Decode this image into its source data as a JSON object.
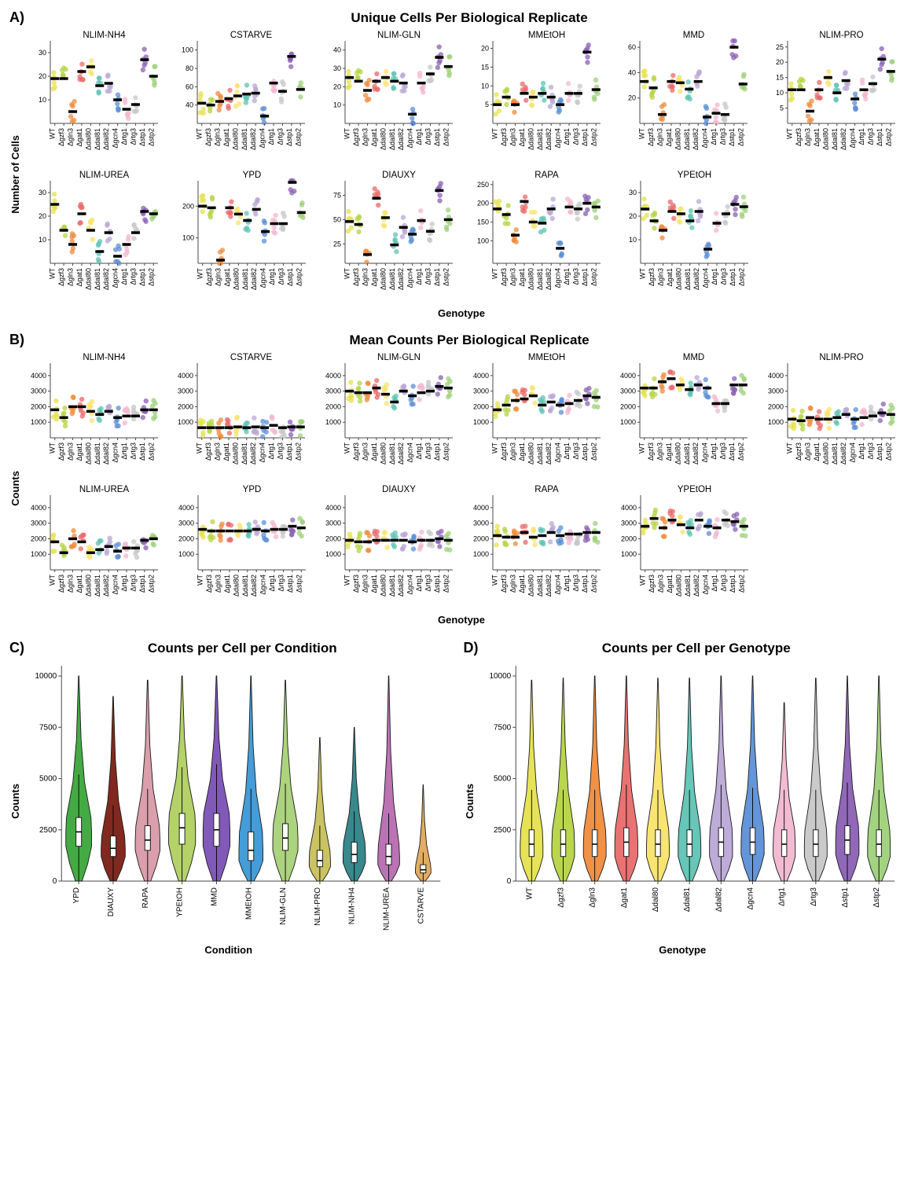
{
  "genotypes": [
    "WT",
    "Δgzf3",
    "Δgln3",
    "Δgat1",
    "Δdal80",
    "Δdal81",
    "Δdal82",
    "Δgcn4",
    "Δrtg1",
    "Δrtg3",
    "Δstp1",
    "Δstp2"
  ],
  "genotype_colors": {
    "WT": "#e6e24d",
    "Δgzf3": "#b6d445",
    "Δgln3": "#f08b3c",
    "Δgat1": "#e96a6a",
    "Δdal80": "#f7e36b",
    "Δdal81": "#5ec3b3",
    "Δdal82": "#b9a7d6",
    "Δgcn4": "#5c8fd6",
    "Δrtg1": "#f2b7d0",
    "Δrtg3": "#c7c7c7",
    "Δstp1": "#8a60b3",
    "Δstp2": "#9ed07a"
  },
  "conditions_order": [
    "YPD",
    "DIAUXY",
    "RAPA",
    "YPEtOH",
    "MMD",
    "MMEtOH",
    "NLIM-GLN",
    "NLIM-PRO",
    "NLIM-NH4",
    "NLIM-UREA",
    "CSTARVE"
  ],
  "condition_colors": {
    "YPD": "#3aa63a",
    "DIAUXY": "#7a1d12",
    "RAPA": "#d89aa7",
    "YPEtOH": "#b0d060",
    "MMD": "#7a50b5",
    "MMEtOH": "#3a98d6",
    "NLIM-GLN": "#a8d176",
    "NLIM-PRO": "#c7c05a",
    "NLIM-NH4": "#2d8286",
    "NLIM-UREA": "#b76bb0",
    "CSTARVE": "#e0a85a"
  },
  "panelA": {
    "letter": "A)",
    "title": "Unique Cells Per Biological Replicate",
    "ylabel": "Number of Cells",
    "xlabel": "Genotype",
    "row1": [
      "NLIM-NH4",
      "CSTARVE",
      "NLIM-GLN",
      "MMEtOH",
      "MMD",
      "NLIM-PRO"
    ],
    "row2": [
      "NLIM-UREA",
      "YPD",
      "DIAUXY",
      "RAPA",
      "YPEtOH"
    ],
    "ylims": {
      "NLIM-NH4": [
        0,
        35
      ],
      "CSTARVE": [
        20,
        110
      ],
      "NLIM-GLN": [
        0,
        45
      ],
      "MMEtOH": [
        0,
        22
      ],
      "MMD": [
        0,
        65
      ],
      "NLIM-PRO": [
        0,
        27
      ],
      "NLIM-UREA": [
        0,
        35
      ],
      "YPD": [
        20,
        280
      ],
      "DIAUXY": [
        5,
        90
      ],
      "RAPA": [
        40,
        260
      ],
      "YPEtOH": [
        0,
        35
      ]
    },
    "yticks": {
      "NLIM-NH4": [
        10,
        20,
        30
      ],
      "CSTARVE": [
        40,
        60,
        80,
        100
      ],
      "NLIM-GLN": [
        10,
        20,
        30,
        40
      ],
      "MMEtOH": [
        5,
        10,
        15,
        20
      ],
      "MMD": [
        20,
        40,
        60
      ],
      "NLIM-PRO": [
        5,
        10,
        15,
        20,
        25
      ],
      "NLIM-UREA": [
        10,
        20,
        30
      ],
      "YPD": [
        100,
        200
      ],
      "DIAUXY": [
        25,
        50,
        75
      ],
      "RAPA": [
        100,
        150,
        200,
        250
      ],
      "YPEtOH": [
        10,
        20,
        30
      ]
    },
    "medians": {
      "NLIM-NH4": [
        19,
        19,
        5,
        22,
        24,
        16,
        17,
        10,
        6,
        8,
        27,
        20
      ],
      "CSTARVE": [
        42,
        40,
        44,
        47,
        50,
        52,
        53,
        28,
        64,
        55,
        93,
        57
      ],
      "NLIM-GLN": [
        25,
        23,
        18,
        23,
        25,
        23,
        22,
        5,
        22,
        27,
        36,
        31
      ],
      "MMEtOH": [
        5,
        7,
        5,
        8,
        7,
        8,
        7,
        5,
        8,
        8,
        19,
        9
      ],
      "MMD": [
        33,
        28,
        7,
        33,
        32,
        27,
        33,
        5,
        8,
        7,
        60,
        31
      ],
      "NLIM-PRO": [
        11,
        11,
        4,
        11,
        15,
        10,
        14,
        8,
        11,
        13,
        21,
        17
      ],
      "NLIM-UREA": [
        25,
        14,
        8,
        21,
        14,
        5,
        13,
        3,
        8,
        13,
        22,
        21
      ],
      "YPD": [
        200,
        195,
        30,
        195,
        175,
        155,
        190,
        120,
        145,
        145,
        275,
        180
      ],
      "DIAUXY": [
        48,
        45,
        14,
        72,
        52,
        24,
        42,
        35,
        49,
        38,
        80,
        50
      ],
      "RAPA": [
        185,
        170,
        115,
        205,
        150,
        147,
        185,
        80,
        190,
        185,
        200,
        190
      ],
      "YPEtOH": [
        23,
        18,
        14,
        22,
        21,
        18,
        22,
        6,
        17,
        21,
        25,
        24
      ]
    },
    "scatter_spread": 0.28,
    "n_reps": 6
  },
  "panelB": {
    "letter": "B)",
    "title": "Mean Counts Per Biological Replicate",
    "ylabel": "Counts",
    "xlabel": "Genotype",
    "row1": [
      "NLIM-NH4",
      "CSTARVE",
      "NLIM-GLN",
      "MMEtOH",
      "MMD",
      "NLIM-PRO"
    ],
    "row2": [
      "NLIM-UREA",
      "YPD",
      "DIAUXY",
      "RAPA",
      "YPEtOH"
    ],
    "ylim": [
      0,
      4800
    ],
    "yticks": [
      1000,
      2000,
      3000,
      4000
    ],
    "medians": {
      "NLIM-NH4": [
        1800,
        1300,
        2000,
        2000,
        1700,
        1500,
        1700,
        1300,
        1400,
        1400,
        1800,
        1800
      ],
      "CSTARVE": [
        650,
        650,
        650,
        650,
        700,
        650,
        700,
        650,
        800,
        650,
        700,
        700
      ],
      "NLIM-GLN": [
        3000,
        2900,
        2900,
        3200,
        2800,
        2300,
        3000,
        2700,
        2900,
        3000,
        3300,
        3200
      ],
      "MMEtOH": [
        1800,
        2100,
        2400,
        2500,
        2700,
        2100,
        2300,
        2100,
        2200,
        2400,
        2700,
        2600
      ],
      "MMD": [
        3200,
        3200,
        3600,
        3800,
        3400,
        3100,
        3400,
        3200,
        2200,
        2200,
        3400,
        3400
      ],
      "NLIM-PRO": [
        1200,
        1100,
        1300,
        1200,
        1200,
        1300,
        1500,
        1200,
        1300,
        1400,
        1600,
        1500
      ],
      "NLIM-UREA": [
        1800,
        1100,
        2000,
        1800,
        1100,
        1300,
        1500,
        1200,
        1400,
        1400,
        1900,
        2000
      ],
      "YPD": [
        2600,
        2500,
        2500,
        2500,
        2500,
        2500,
        2600,
        2500,
        2600,
        2600,
        2800,
        2700
      ],
      "DIAUXY": [
        1900,
        1800,
        1800,
        1900,
        1900,
        1900,
        1900,
        1800,
        1900,
        1900,
        2000,
        1900
      ],
      "RAPA": [
        2200,
        2100,
        2100,
        2400,
        2100,
        2200,
        2400,
        2200,
        2300,
        2300,
        2400,
        2400
      ],
      "YPEtOH": [
        2800,
        3300,
        2700,
        3200,
        2900,
        2700,
        3200,
        2800,
        2700,
        3200,
        3100,
        2800
      ]
    },
    "scatter_spread": 0.28,
    "n_reps": 6
  },
  "panelC": {
    "letter": "C)",
    "title": "Counts per Cell per Condition",
    "ylabel": "Counts",
    "xlabel": "Condition",
    "ylim": [
      0,
      10500
    ],
    "yticks": [
      0,
      2500,
      5000,
      7500,
      10000
    ],
    "violins": {
      "YPD": {
        "median": 2400,
        "q1": 1700,
        "q3": 3100,
        "tail": 10000,
        "width": 0.75
      },
      "DIAUXY": {
        "median": 1600,
        "q1": 1200,
        "q3": 2200,
        "tail": 9000,
        "width": 0.7
      },
      "RAPA": {
        "median": 2000,
        "q1": 1500,
        "q3": 2700,
        "tail": 9800,
        "width": 0.72
      },
      "YPEtOH": {
        "median": 2600,
        "q1": 1800,
        "q3": 3300,
        "tail": 10000,
        "width": 0.78
      },
      "MMD": {
        "median": 2500,
        "q1": 1700,
        "q3": 3300,
        "tail": 10000,
        "width": 0.78
      },
      "MMEtOH": {
        "median": 1500,
        "q1": 1000,
        "q3": 2400,
        "tail": 10000,
        "width": 0.7
      },
      "NLIM-GLN": {
        "median": 2100,
        "q1": 1500,
        "q3": 2800,
        "tail": 9800,
        "width": 0.73
      },
      "NLIM-PRO": {
        "median": 1000,
        "q1": 700,
        "q3": 1500,
        "tail": 7000,
        "width": 0.62
      },
      "NLIM-NH4": {
        "median": 1300,
        "q1": 900,
        "q3": 1900,
        "tail": 7500,
        "width": 0.65
      },
      "NLIM-UREA": {
        "median": 1200,
        "q1": 800,
        "q3": 1800,
        "tail": 10000,
        "width": 0.63
      },
      "CSTARVE": {
        "median": 550,
        "q1": 400,
        "q3": 800,
        "tail": 4700,
        "width": 0.45
      }
    }
  },
  "panelD": {
    "letter": "D)",
    "title": "Counts per Cell per Genotype",
    "ylabel": "Counts",
    "xlabel": "Genotype",
    "ylim": [
      0,
      10500
    ],
    "yticks": [
      0,
      2500,
      5000,
      7500,
      10000
    ],
    "violins": {
      "WT": {
        "median": 1800,
        "q1": 1200,
        "q3": 2500,
        "tail": 9800,
        "width": 0.72
      },
      "Δgzf3": {
        "median": 1800,
        "q1": 1200,
        "q3": 2500,
        "tail": 9900,
        "width": 0.72
      },
      "Δgln3": {
        "median": 1800,
        "q1": 1200,
        "q3": 2500,
        "tail": 10000,
        "width": 0.72
      },
      "Δgat1": {
        "median": 1900,
        "q1": 1200,
        "q3": 2600,
        "tail": 10000,
        "width": 0.73
      },
      "Δdal80": {
        "median": 1800,
        "q1": 1200,
        "q3": 2500,
        "tail": 9900,
        "width": 0.72
      },
      "Δdal81": {
        "median": 1800,
        "q1": 1200,
        "q3": 2500,
        "tail": 9900,
        "width": 0.72
      },
      "Δdal82": {
        "median": 1900,
        "q1": 1200,
        "q3": 2600,
        "tail": 10000,
        "width": 0.73
      },
      "Δgcn4": {
        "median": 1900,
        "q1": 1300,
        "q3": 2600,
        "tail": 10000,
        "width": 0.73
      },
      "Δrtg1": {
        "median": 1800,
        "q1": 1200,
        "q3": 2500,
        "tail": 8700,
        "width": 0.7
      },
      "Δrtg3": {
        "median": 1800,
        "q1": 1200,
        "q3": 2500,
        "tail": 9900,
        "width": 0.72
      },
      "Δstp1": {
        "median": 2000,
        "q1": 1300,
        "q3": 2700,
        "tail": 10000,
        "width": 0.74
      },
      "Δstp2": {
        "median": 1800,
        "q1": 1200,
        "q3": 2500,
        "tail": 10000,
        "width": 0.72
      }
    }
  },
  "style": {
    "point_radius": 3.2,
    "point_opacity": 0.75,
    "median_bar_color": "#000000",
    "median_bar_width": 11,
    "median_bar_height": 3.5,
    "axis_color": "#4a4a4a",
    "grid_color": "#ffffff",
    "panel_bg": "#ffffff",
    "tick_len": 3,
    "facet_plot_w": 172,
    "facet_plot_h": 128,
    "facet_plot_w_b": 172,
    "facet_plot_h_b": 118,
    "violin_plot_h": 280,
    "box_stroke": "#202020",
    "box_fill": "#ffffff",
    "box_width": 0.16
  }
}
